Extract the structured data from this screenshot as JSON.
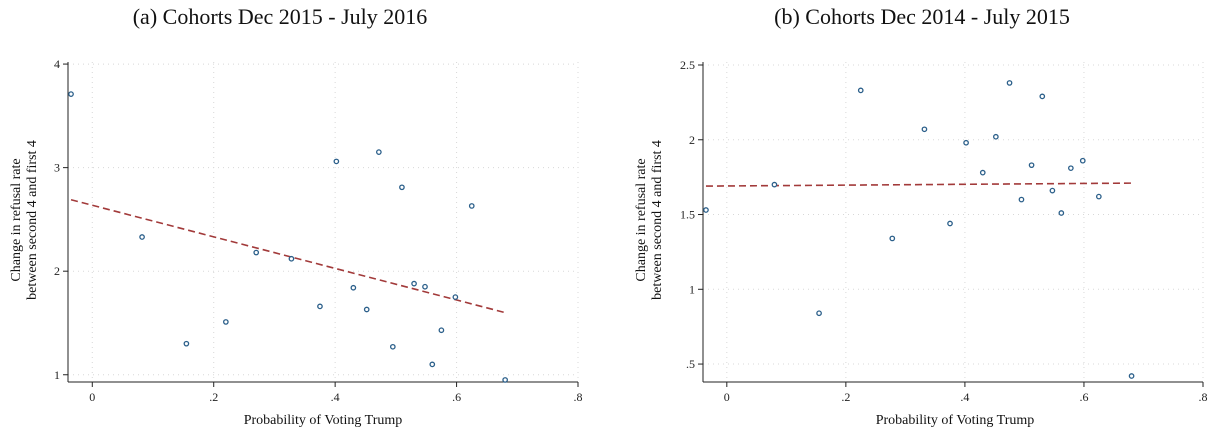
{
  "chart_data": [
    {
      "type": "scatter",
      "title": "(a) Cohorts Dec 2015 - July 2016",
      "xlabel": "Probability of Voting Trump",
      "ylabel_line1": "Change in refusal rate",
      "ylabel_line2": "between second 4 and first 4",
      "xlim": [
        -0.04,
        0.8
      ],
      "ylim": [
        0.93,
        4.02
      ],
      "xticks": [
        0,
        0.2,
        0.4,
        0.6,
        0.8
      ],
      "xtick_labels": [
        "0",
        ".2",
        ".4",
        ".6",
        ".8"
      ],
      "yticks": [
        1,
        2,
        3,
        4
      ],
      "ytick_labels": [
        "1",
        "2",
        "3",
        "4"
      ],
      "grid": true,
      "points": [
        {
          "x": -0.035,
          "y": 3.71
        },
        {
          "x": 0.082,
          "y": 2.33
        },
        {
          "x": 0.155,
          "y": 1.3
        },
        {
          "x": 0.22,
          "y": 1.51
        },
        {
          "x": 0.27,
          "y": 2.18
        },
        {
          "x": 0.328,
          "y": 2.12
        },
        {
          "x": 0.375,
          "y": 1.66
        },
        {
          "x": 0.402,
          "y": 3.06
        },
        {
          "x": 0.43,
          "y": 1.84
        },
        {
          "x": 0.452,
          "y": 1.63
        },
        {
          "x": 0.472,
          "y": 3.15
        },
        {
          "x": 0.51,
          "y": 2.81
        },
        {
          "x": 0.495,
          "y": 1.27
        },
        {
          "x": 0.53,
          "y": 1.88
        },
        {
          "x": 0.548,
          "y": 1.85
        },
        {
          "x": 0.56,
          "y": 1.1
        },
        {
          "x": 0.575,
          "y": 1.43
        },
        {
          "x": 0.598,
          "y": 1.75
        },
        {
          "x": 0.625,
          "y": 2.63
        },
        {
          "x": 0.68,
          "y": 0.95
        }
      ],
      "fit_line": {
        "x": [
          -0.035,
          0.68
        ],
        "y": [
          2.69,
          1.6
        ]
      }
    },
    {
      "type": "scatter",
      "title": "(b) Cohorts Dec 2014 - July 2015",
      "xlabel": "Probability of Voting Trump",
      "ylabel_line1": "Change in refusal rate",
      "ylabel_line2": "between second 4 and first 4",
      "xlim": [
        -0.04,
        0.8
      ],
      "ylim": [
        0.38,
        2.52
      ],
      "xticks": [
        0,
        0.2,
        0.4,
        0.6,
        0.8
      ],
      "xtick_labels": [
        "0",
        ".2",
        ".4",
        ".6",
        ".8"
      ],
      "yticks": [
        0.5,
        1,
        1.5,
        2,
        2.5
      ],
      "ytick_labels": [
        ".5",
        "1",
        "1.5",
        "2",
        "2.5"
      ],
      "grid": true,
      "points": [
        {
          "x": -0.035,
          "y": 1.53
        },
        {
          "x": 0.08,
          "y": 1.7
        },
        {
          "x": 0.155,
          "y": 0.84
        },
        {
          "x": 0.225,
          "y": 2.33
        },
        {
          "x": 0.278,
          "y": 1.34
        },
        {
          "x": 0.332,
          "y": 2.07
        },
        {
          "x": 0.375,
          "y": 1.44
        },
        {
          "x": 0.402,
          "y": 1.98
        },
        {
          "x": 0.43,
          "y": 1.78
        },
        {
          "x": 0.452,
          "y": 2.02
        },
        {
          "x": 0.475,
          "y": 2.38
        },
        {
          "x": 0.495,
          "y": 1.6
        },
        {
          "x": 0.512,
          "y": 1.83
        },
        {
          "x": 0.53,
          "y": 2.29
        },
        {
          "x": 0.547,
          "y": 1.66
        },
        {
          "x": 0.562,
          "y": 1.51
        },
        {
          "x": 0.578,
          "y": 1.81
        },
        {
          "x": 0.598,
          "y": 1.86
        },
        {
          "x": 0.625,
          "y": 1.62
        },
        {
          "x": 0.68,
          "y": 0.42
        }
      ],
      "fit_line": {
        "x": [
          -0.035,
          0.68
        ],
        "y": [
          1.69,
          1.71
        ]
      }
    }
  ]
}
